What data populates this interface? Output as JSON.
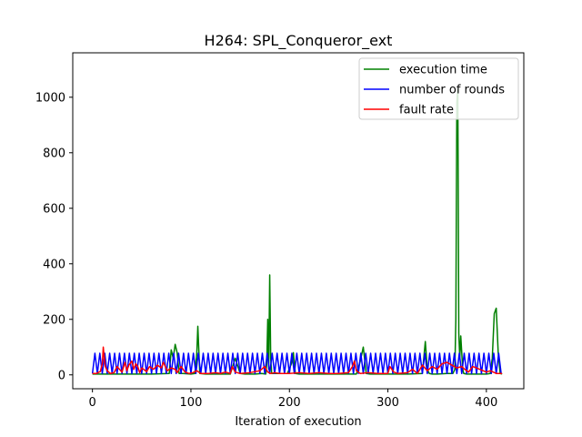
{
  "chart_data": {
    "type": "line",
    "title": "H264: SPL_Conqueror_ext",
    "xlabel": "Iteration of execution",
    "ylabel": "",
    "xlim": [
      -20,
      438
    ],
    "ylim": [
      -50,
      1160
    ],
    "xticks": [
      0,
      100,
      200,
      300,
      400
    ],
    "yticks": [
      0,
      200,
      400,
      600,
      800,
      1000
    ],
    "grid": false,
    "legend_position": "top-right",
    "series": [
      {
        "name": "execution time",
        "color": "#008000",
        "x": [
          0,
          60,
          78,
          80,
          82,
          84,
          86,
          88,
          92,
          100,
          104,
          106,
          107,
          109,
          115,
          130,
          140,
          145,
          150,
          155,
          165,
          172,
          176,
          177,
          178,
          179,
          180,
          181,
          182,
          184,
          190,
          198,
          202,
          204,
          206,
          210,
          215,
          230,
          250,
          268,
          272,
          275,
          278,
          282,
          300,
          320,
          335,
          338,
          340,
          342,
          345,
          350,
          360,
          366,
          368,
          369,
          370,
          371,
          372,
          373,
          374,
          375,
          376,
          377,
          380,
          390,
          400,
          404,
          406,
          408,
          410,
          412,
          414,
          416
        ],
        "y": [
          3,
          3,
          5,
          90,
          60,
          110,
          80,
          5,
          5,
          3,
          5,
          80,
          175,
          5,
          3,
          3,
          3,
          60,
          5,
          3,
          3,
          5,
          3,
          40,
          200,
          20,
          360,
          60,
          5,
          5,
          5,
          5,
          40,
          80,
          5,
          3,
          3,
          3,
          3,
          3,
          50,
          100,
          5,
          3,
          3,
          3,
          5,
          120,
          20,
          5,
          3,
          3,
          5,
          5,
          20,
          200,
          980,
          1030,
          150,
          60,
          140,
          80,
          20,
          5,
          3,
          3,
          3,
          5,
          60,
          220,
          240,
          80,
          5,
          3
        ]
      },
      {
        "name": "number of rounds",
        "color": "#0000ff",
        "zigzag": true,
        "x_start": 0,
        "x_end": 416,
        "period": 5,
        "low": 5,
        "high": 78
      },
      {
        "name": "fault rate",
        "color": "#ff0000",
        "x": [
          0,
          4,
          8,
          10,
          11,
          12,
          13,
          15,
          18,
          22,
          25,
          30,
          33,
          35,
          37,
          40,
          42,
          44,
          46,
          48,
          50,
          55,
          58,
          62,
          66,
          70,
          72,
          74,
          76,
          80,
          84,
          86,
          90,
          94,
          98,
          102,
          106,
          110,
          118,
          125,
          130,
          135,
          140,
          142,
          145,
          150,
          160,
          170,
          175,
          178,
          181,
          185,
          190,
          200,
          210,
          220,
          230,
          240,
          250,
          260,
          264,
          266,
          268,
          272,
          280,
          290,
          300,
          302,
          306,
          310,
          320,
          325,
          330,
          335,
          340,
          345,
          350,
          355,
          360,
          365,
          370,
          375,
          378,
          382,
          386,
          390,
          400,
          404,
          410,
          416
        ],
        "y": [
          5,
          5,
          12,
          40,
          100,
          60,
          30,
          15,
          5,
          8,
          30,
          10,
          45,
          15,
          35,
          50,
          20,
          40,
          30,
          8,
          25,
          12,
          30,
          20,
          35,
          25,
          45,
          30,
          15,
          25,
          20,
          8,
          30,
          10,
          5,
          8,
          15,
          5,
          5,
          8,
          5,
          10,
          5,
          30,
          10,
          5,
          8,
          15,
          30,
          10,
          5,
          8,
          5,
          5,
          8,
          5,
          8,
          5,
          5,
          8,
          30,
          50,
          15,
          5,
          8,
          5,
          5,
          30,
          10,
          5,
          8,
          20,
          5,
          35,
          15,
          30,
          20,
          40,
          45,
          35,
          25,
          30,
          20,
          10,
          30,
          25,
          10,
          15,
          5,
          5
        ]
      }
    ]
  }
}
